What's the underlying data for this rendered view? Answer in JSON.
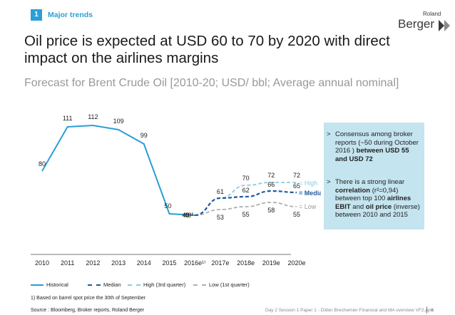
{
  "header": {
    "section_number": "1",
    "section_label": "Major trends"
  },
  "logo": {
    "line1": "Roland",
    "line2": "Berger"
  },
  "title": "Oil price is expected at USD 60 to 70 by 2020 with direct impact on the airlines margins",
  "subtitle": "Forecast for Brent Crude Oil [2010-20; USD/ bbl; Average annual nominal]",
  "infobox": {
    "bullet1": {
      "text": "Consensus among broker reports (~50 during October 2016 ) ",
      "bold": "between USD 55 and USD 72"
    },
    "bullet2": {
      "pre": "There is a strong linear ",
      "bold1": "correlation",
      "mid": " (r²=0,94) between top 100 ",
      "bold2": "airlines EBIT",
      "mid2": " and ",
      "bold3": "oil price",
      "post": " (inverse) between 2010 and 2015"
    }
  },
  "chart_data": {
    "type": "line",
    "categories": [
      "2010",
      "2011",
      "2012",
      "2013",
      "2014",
      "2015",
      "2016e¹⁾",
      "2017e",
      "2018e",
      "2019e",
      "2020e"
    ],
    "series": [
      {
        "name": "Historical",
        "color": "#2a9fd6",
        "values": [
          80,
          111,
          112,
          109,
          99,
          50,
          49,
          null,
          null,
          null,
          null
        ],
        "labels": [
          "80",
          "111",
          "112",
          "109",
          "99",
          "50",
          "49¹⁾",
          null,
          null,
          null,
          null
        ]
      },
      {
        "name": "Median",
        "color": "#1f5a9e",
        "values": [
          null,
          null,
          null,
          null,
          null,
          null,
          49,
          61,
          62,
          66,
          65
        ],
        "labels": [
          null,
          null,
          null,
          null,
          null,
          null,
          "49",
          61,
          62,
          66,
          65
        ]
      },
      {
        "name": "High (3rd quarter)",
        "color": "#8cc9e6",
        "values": [
          null,
          null,
          null,
          null,
          null,
          null,
          49,
          61,
          70,
          72,
          72
        ],
        "labels": [
          null,
          null,
          null,
          null,
          null,
          null,
          null,
          null,
          70,
          72,
          72
        ]
      },
      {
        "name": "Low (1st quarter)",
        "color": "#b0b0b0",
        "values": [
          null,
          null,
          null,
          null,
          null,
          null,
          49,
          53,
          55,
          58,
          55
        ],
        "labels": [
          null,
          null,
          null,
          null,
          null,
          null,
          null,
          53,
          55,
          58,
          55
        ]
      }
    ],
    "band_labels": {
      "high": "= High",
      "median": "= Median",
      "low": "= Low"
    },
    "ylim": [
      40,
      120
    ],
    "grid": false
  },
  "legend": {
    "historical": "Historical",
    "median": "Median",
    "high": "High (3rd quarter)",
    "low": "Low (1st quarter)"
  },
  "footnote": "1) Based on barrel spot price the 30th of September",
  "source": "Source : Bloomberg, Broker reports, Roland Berger",
  "footer": "Day 2 Session 1 Paper 1 - Didier Brechemier Financial and MA overview VF2.pptx",
  "page_number": "4"
}
